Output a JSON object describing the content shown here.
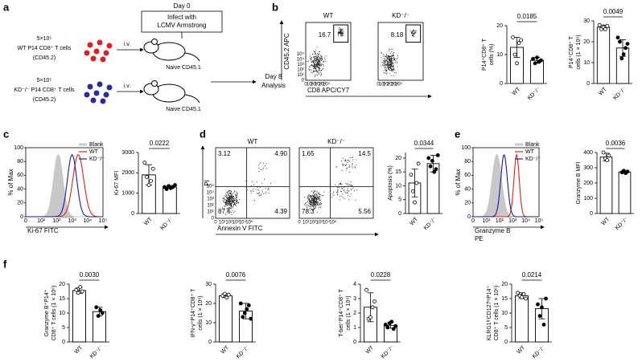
{
  "panel_letters": [
    "a",
    "b",
    "c",
    "d",
    "e",
    "f"
  ],
  "schematic": {
    "day0": "Day 0",
    "infect": [
      "Infect with",
      "LCMV Armstrong"
    ],
    "wt_cells": [
      "5×10⁵",
      "WT P14 CD8⁺ T cells",
      "(CD45.2)"
    ],
    "kd_cells": [
      "5×10⁵",
      "KD⁻/⁻ P14 CD8⁺ T cells",
      "(CD45.2)"
    ],
    "route": "i.v.",
    "mouse_label": "Naive CD45.1",
    "analysis": [
      "Day 8",
      "Analysis"
    ]
  },
  "flow_b": {
    "titles": [
      "WT",
      "KD⁻/⁻"
    ],
    "gates": [
      "16.7",
      "8.18"
    ],
    "ylabel": "CD45.2 APC",
    "xlabel": "CD8 APC/CY7",
    "ticks": [
      "0",
      "10¹",
      "10²",
      "10³",
      "10⁴",
      "10⁵"
    ]
  },
  "hist_c": {
    "legend": [
      {
        "name": "Blank",
        "color": "#c8c8c8"
      },
      {
        "name": "WT",
        "color": "#e0201b"
      },
      {
        "name": "KD⁻/⁻",
        "color": "#1a1aa6"
      }
    ],
    "ylabel": "% of Max",
    "xlabel": [
      "Ki-67 FITC"
    ],
    "ylim": [
      0,
      100
    ],
    "yticks": [
      0,
      20,
      40,
      60,
      80,
      100
    ],
    "xticks": [
      "0",
      "10¹",
      "10²",
      "10³",
      "10⁴",
      "10⁵"
    ]
  },
  "flow_d": {
    "titles": [
      "WT",
      "KD⁻/⁻"
    ],
    "quadrants": [
      [
        "3.12",
        "4.90",
        "87.6",
        "4.39"
      ],
      [
        "1.65",
        "14.5",
        "78.3",
        "5.56"
      ]
    ],
    "ylabel": "PI",
    "xlabel": "Annexin V FITC",
    "ticks": [
      "0",
      "10¹",
      "10²",
      "10³",
      "10⁴",
      "10⁵"
    ]
  },
  "hist_e": {
    "legend": [
      {
        "name": "Blank",
        "color": "#c8c8c8"
      },
      {
        "name": "WT",
        "color": "#e0201b"
      },
      {
        "name": "KD⁻/⁻",
        "color": "#1a1aa6"
      }
    ],
    "ylabel": "% of Max",
    "xlabel": [
      "Granzyme B",
      "PE"
    ],
    "ylim": [
      0,
      100
    ],
    "yticks": [
      0,
      20,
      40,
      60,
      80,
      100
    ],
    "xticks": [
      "0",
      "10¹",
      "10²",
      "10³",
      "10⁴",
      "10⁵"
    ]
  },
  "chart_data": [
    {
      "type": "bar",
      "ylabel": [
        "P14⁺CD8⁺ T",
        "cells (%)"
      ],
      "pvalue": "0.0185",
      "categories": [
        "WT",
        "KD⁻/⁻"
      ],
      "values": [
        12.5,
        8
      ],
      "errors": [
        3.5,
        1
      ],
      "points": [
        [
          16,
          10,
          7,
          14,
          15
        ],
        [
          8.5,
          7,
          9,
          7.5,
          8
        ]
      ],
      "ylim": [
        0,
        20
      ],
      "yticks": [
        0,
        10,
        20
      ]
    },
    {
      "type": "bar",
      "ylabel": [
        "P14⁺CD8⁺ T",
        "cells (1 × 10⁶)"
      ],
      "pvalue": "0.0049",
      "categories": [
        "WT",
        "KD⁻/⁻"
      ],
      "values": [
        27,
        17
      ],
      "errors": [
        1,
        4
      ],
      "points": [
        [
          28,
          26,
          27,
          26,
          27.5
        ],
        [
          22,
          20,
          12,
          14,
          17,
          19
        ]
      ],
      "ylim": [
        0,
        30
      ],
      "yticks": [
        0,
        10,
        20,
        30
      ]
    },
    {
      "type": "bar",
      "ylabel": [
        "Ki-67 MFI"
      ],
      "pvalue": "0.0222",
      "categories": [
        "WT",
        "KD⁻/⁻"
      ],
      "values": [
        1900,
        1300
      ],
      "errors": [
        500,
        80
      ],
      "points": [
        [
          2500,
          1800,
          1400,
          1600,
          2200
        ],
        [
          1300,
          1200,
          1350,
          1250,
          1300,
          1400
        ]
      ],
      "ylim": [
        0,
        3000
      ],
      "yticks": [
        0,
        1000,
        2000,
        3000
      ]
    },
    {
      "type": "bar",
      "ylabel": [
        "Apoptosis (%)"
      ],
      "pvalue": "0.0344",
      "categories": [
        "WT",
        "KD⁻/⁻"
      ],
      "values": [
        11,
        18
      ],
      "errors": [
        5,
        3
      ],
      "points": [
        [
          14,
          8,
          4,
          11,
          18
        ],
        [
          20,
          17,
          19,
          15,
          16,
          21
        ]
      ],
      "ylim": [
        0,
        22
      ],
      "yticks": [
        0,
        5,
        10,
        15,
        20
      ]
    },
    {
      "type": "bar",
      "ylabel": [
        "Granzyme B MFI"
      ],
      "pvalue": "0.0036",
      "categories": [
        "WT",
        "KD⁻/⁻"
      ],
      "values": [
        370,
        272
      ],
      "errors": [
        25,
        8
      ],
      "points": [
        [
          400,
          360,
          350,
          380
        ],
        [
          270,
          280,
          265,
          275
        ]
      ],
      "ylim": [
        0,
        400
      ],
      "yticks": [
        0,
        100,
        200,
        300,
        400
      ]
    },
    {
      "type": "bar",
      "ylabel": [
        "Granzyme B⁺P14⁺",
        "CD8⁺ T cells (1 × 10⁶)"
      ],
      "pvalue": "0.0030",
      "categories": [
        "WT",
        "KD⁻/⁻"
      ],
      "values": [
        17.8,
        10.5
      ],
      "errors": [
        1,
        1.5
      ],
      "points": [
        [
          18,
          17,
          19,
          17.5
        ],
        [
          12,
          9,
          11,
          10
        ]
      ],
      "ylim": [
        0,
        20
      ],
      "yticks": [
        0,
        5,
        10,
        15,
        20
      ]
    },
    {
      "type": "bar",
      "ylabel": [
        "IFN-γ⁺P14⁺CD8⁺ T",
        "cells (1 × 10⁶)"
      ],
      "pvalue": "0.0076",
      "categories": [
        "WT",
        "KD⁻/⁻"
      ],
      "values": [
        24,
        16
      ],
      "errors": [
        1,
        4
      ],
      "points": [
        [
          24,
          25,
          23,
          24.5
        ],
        [
          20,
          13,
          15,
          17,
          19,
          12
        ]
      ],
      "ylim": [
        0,
        30
      ],
      "yticks": [
        0,
        10,
        20,
        30
      ]
    },
    {
      "type": "bar",
      "ylabel": [
        "T-bet⁺P14⁺CD8⁺ T",
        "cells (1 × 10⁶)"
      ],
      "pvalue": "0.0228",
      "categories": [
        "WT",
        "KD⁻/⁻"
      ],
      "values": [
        2.4,
        1.15
      ],
      "errors": [
        1,
        0.2
      ],
      "points": [
        [
          3.6,
          1.6,
          1.7,
          2.4,
          2.8
        ],
        [
          1.2,
          1,
          1.3,
          1.4,
          0.9,
          1.1
        ]
      ],
      "ylim": [
        0,
        4
      ],
      "yticks": [
        0,
        1,
        2,
        3,
        4
      ]
    },
    {
      "type": "bar",
      "ylabel": [
        "KLRG1ʰⁱCD127ˡᵒP14⁺",
        "CD8⁺ T cells (1 × 10⁶)"
      ],
      "pvalue": "0.0214",
      "categories": [
        "WT",
        "KD⁻/⁻"
      ],
      "values": [
        16,
        11.5
      ],
      "errors": [
        1,
        3.5
      ],
      "points": [
        [
          17,
          16,
          15.5,
          16.5,
          15
        ],
        [
          13,
          9,
          12,
          6,
          15
        ]
      ],
      "ylim": [
        0,
        20
      ],
      "yticks": [
        0,
        5,
        10,
        15,
        20
      ]
    }
  ]
}
